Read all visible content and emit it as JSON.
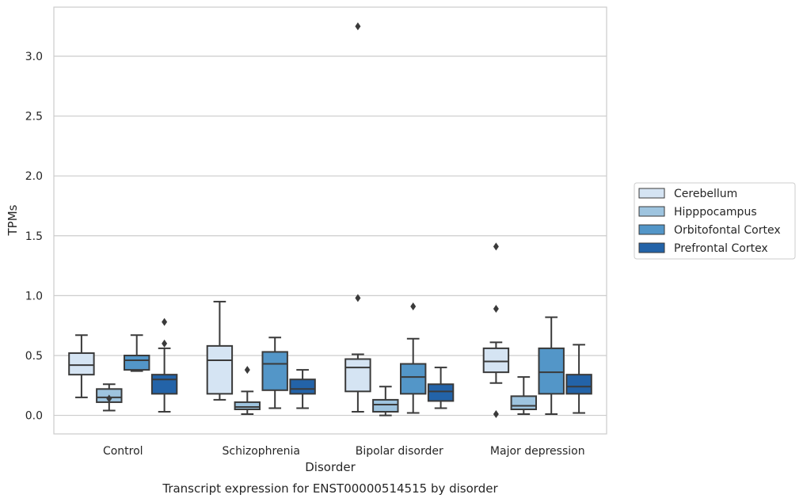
{
  "chart_data": {
    "type": "box",
    "caption": "Transcript expression for ENST00000514515 by disorder",
    "xlabel": "Disorder",
    "ylabel": "TPMs",
    "ylim": [
      -0.155,
      3.41
    ],
    "yticks": [
      0.0,
      0.5,
      1.0,
      1.5,
      2.0,
      2.5,
      3.0
    ],
    "ytick_labels": [
      "0.0",
      "0.5",
      "1.0",
      "1.5",
      "2.0",
      "2.5",
      "3.0"
    ],
    "grid": "horizontal",
    "legend_position": "center-right",
    "categories": [
      "Control",
      "Schizophrenia",
      "Bipolar disorder",
      "Major depression"
    ],
    "series": [
      {
        "name": "Cerebellum",
        "color": "#d5e4f3",
        "boxes": [
          {
            "whisker_low": 0.15,
            "q1": 0.34,
            "median": 0.42,
            "q3": 0.52,
            "whisker_high": 0.67,
            "outliers": []
          },
          {
            "whisker_low": 0.13,
            "q1": 0.18,
            "median": 0.46,
            "q3": 0.58,
            "whisker_high": 0.95,
            "outliers": []
          },
          {
            "whisker_low": 0.03,
            "q1": 0.2,
            "median": 0.4,
            "q3": 0.47,
            "whisker_high": 0.51,
            "outliers": [
              0.98,
              3.25
            ]
          },
          {
            "whisker_low": 0.27,
            "q1": 0.36,
            "median": 0.45,
            "q3": 0.56,
            "whisker_high": 0.61,
            "outliers": [
              0.89,
              1.41,
              0.01
            ]
          }
        ]
      },
      {
        "name": "Hipppocampus",
        "color": "#9ec4df",
        "boxes": [
          {
            "whisker_low": 0.04,
            "q1": 0.11,
            "median": 0.15,
            "q3": 0.22,
            "whisker_high": 0.26,
            "outliers": [
              0.14
            ]
          },
          {
            "whisker_low": 0.01,
            "q1": 0.05,
            "median": 0.07,
            "q3": 0.11,
            "whisker_high": 0.2,
            "outliers": [
              0.38
            ]
          },
          {
            "whisker_low": 0.0,
            "q1": 0.03,
            "median": 0.09,
            "q3": 0.13,
            "whisker_high": 0.24,
            "outliers": []
          },
          {
            "whisker_low": 0.01,
            "q1": 0.05,
            "median": 0.08,
            "q3": 0.16,
            "whisker_high": 0.32,
            "outliers": []
          }
        ]
      },
      {
        "name": "Orbitofontal Cortex",
        "color": "#5396c8",
        "boxes": [
          {
            "whisker_low": 0.37,
            "q1": 0.38,
            "median": 0.46,
            "q3": 0.5,
            "whisker_high": 0.67,
            "outliers": []
          },
          {
            "whisker_low": 0.06,
            "q1": 0.21,
            "median": 0.43,
            "q3": 0.53,
            "whisker_high": 0.65,
            "outliers": []
          },
          {
            "whisker_low": 0.02,
            "q1": 0.18,
            "median": 0.32,
            "q3": 0.43,
            "whisker_high": 0.64,
            "outliers": [
              0.91
            ]
          },
          {
            "whisker_low": 0.01,
            "q1": 0.18,
            "median": 0.36,
            "q3": 0.56,
            "whisker_high": 0.82,
            "outliers": []
          }
        ]
      },
      {
        "name": "Prefrontal Cortex",
        "color": "#2363a8",
        "boxes": [
          {
            "whisker_low": 0.03,
            "q1": 0.18,
            "median": 0.3,
            "q3": 0.34,
            "whisker_high": 0.56,
            "outliers": [
              0.6,
              0.78
            ]
          },
          {
            "whisker_low": 0.06,
            "q1": 0.18,
            "median": 0.22,
            "q3": 0.3,
            "whisker_high": 0.38,
            "outliers": []
          },
          {
            "whisker_low": 0.06,
            "q1": 0.12,
            "median": 0.2,
            "q3": 0.26,
            "whisker_high": 0.4,
            "outliers": []
          },
          {
            "whisker_low": 0.02,
            "q1": 0.18,
            "median": 0.24,
            "q3": 0.34,
            "whisker_high": 0.59,
            "outliers": []
          }
        ]
      }
    ]
  }
}
